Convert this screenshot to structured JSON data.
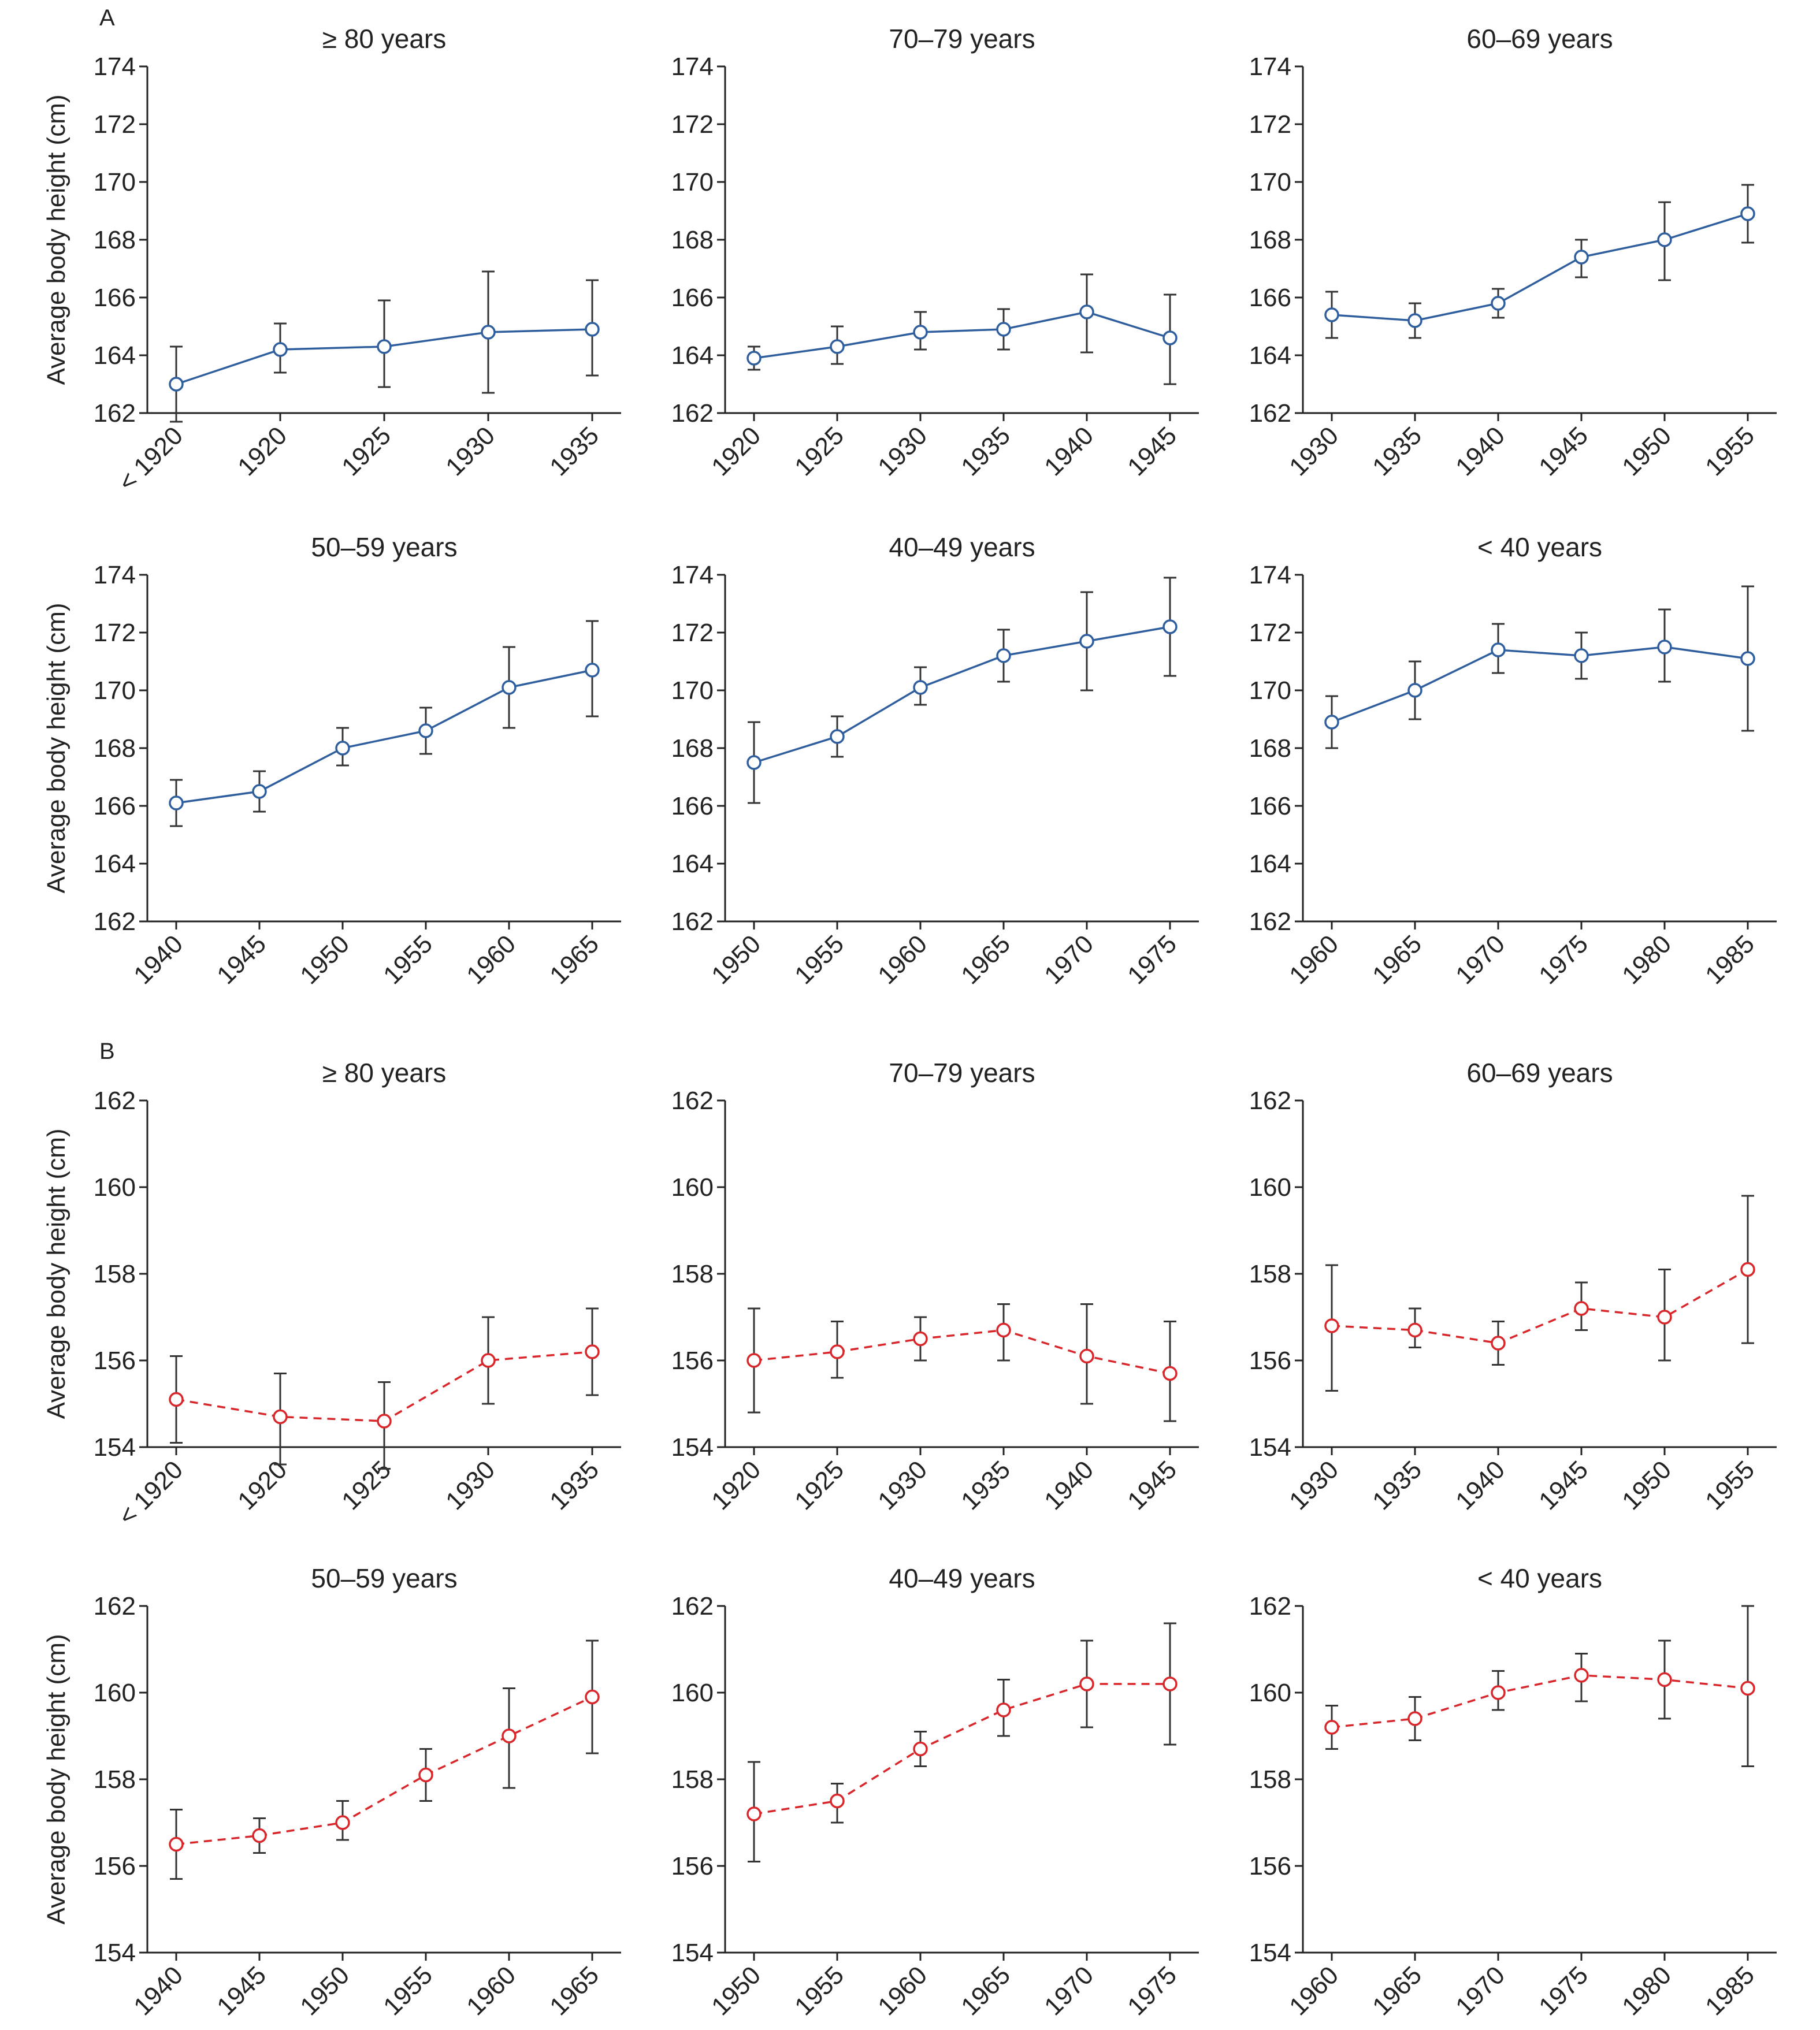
{
  "panels": [
    {
      "letter": "A"
    },
    {
      "letter": "B"
    }
  ],
  "styles": {
    "A": {
      "color": "#2e5e9e",
      "dash": "none"
    },
    "B": {
      "color": "#d9262b",
      "dash": "14 10"
    }
  },
  "ylabel": "Average body height (cm)",
  "chart_data": [
    {
      "type": "line",
      "panel": "A",
      "title": "≥ 80 years",
      "ylabel": "Average body height (cm)",
      "ylim": [
        162,
        174
      ],
      "yticks": [
        162,
        164,
        166,
        168,
        170,
        172,
        174
      ],
      "categories": [
        "< 1920",
        "1920",
        "1925",
        "1930",
        "1935"
      ],
      "values": [
        163.0,
        164.2,
        164.3,
        164.8,
        164.9
      ],
      "lower": [
        161.7,
        163.4,
        162.9,
        162.7,
        163.3
      ],
      "upper": [
        164.3,
        165.1,
        165.9,
        166.9,
        166.6
      ]
    },
    {
      "type": "line",
      "panel": "A",
      "title": "70–79 years",
      "ylabel": "",
      "ylim": [
        162,
        174
      ],
      "yticks": [
        162,
        164,
        166,
        168,
        170,
        172,
        174
      ],
      "categories": [
        "1920",
        "1925",
        "1930",
        "1935",
        "1940",
        "1945"
      ],
      "values": [
        163.9,
        164.3,
        164.8,
        164.9,
        165.5,
        164.6
      ],
      "lower": [
        163.5,
        163.7,
        164.2,
        164.2,
        164.1,
        163.0
      ],
      "upper": [
        164.3,
        165.0,
        165.5,
        165.6,
        166.8,
        166.1
      ]
    },
    {
      "type": "line",
      "panel": "A",
      "title": "60–69 years",
      "ylabel": "",
      "ylim": [
        162,
        174
      ],
      "yticks": [
        162,
        164,
        166,
        168,
        170,
        172,
        174
      ],
      "categories": [
        "1930",
        "1935",
        "1940",
        "1945",
        "1950",
        "1955"
      ],
      "values": [
        165.4,
        165.2,
        165.8,
        167.4,
        168.0,
        168.9
      ],
      "lower": [
        164.6,
        164.6,
        165.3,
        166.7,
        166.6,
        167.9
      ],
      "upper": [
        166.2,
        165.8,
        166.3,
        168.0,
        169.3,
        169.9
      ]
    },
    {
      "type": "line",
      "panel": "A",
      "title": "50–59 years",
      "ylabel": "Average body height (cm)",
      "ylim": [
        162,
        174
      ],
      "yticks": [
        162,
        164,
        166,
        168,
        170,
        172,
        174
      ],
      "categories": [
        "1940",
        "1945",
        "1950",
        "1955",
        "1960",
        "1965"
      ],
      "values": [
        166.1,
        166.5,
        168.0,
        168.6,
        170.1,
        170.7
      ],
      "lower": [
        165.3,
        165.8,
        167.4,
        167.8,
        168.7,
        169.1
      ],
      "upper": [
        166.9,
        167.2,
        168.7,
        169.4,
        171.5,
        172.4
      ]
    },
    {
      "type": "line",
      "panel": "A",
      "title": "40–49 years",
      "ylabel": "",
      "ylim": [
        162,
        174
      ],
      "yticks": [
        162,
        164,
        166,
        168,
        170,
        172,
        174
      ],
      "categories": [
        "1950",
        "1955",
        "1960",
        "1965",
        "1970",
        "1975"
      ],
      "values": [
        167.5,
        168.4,
        170.1,
        171.2,
        171.7,
        172.2
      ],
      "lower": [
        166.1,
        167.7,
        169.5,
        170.3,
        170.0,
        170.5
      ],
      "upper": [
        168.9,
        169.1,
        170.8,
        172.1,
        173.4,
        173.9
      ]
    },
    {
      "type": "line",
      "panel": "A",
      "title": "< 40 years",
      "ylabel": "",
      "ylim": [
        162,
        174
      ],
      "yticks": [
        162,
        164,
        166,
        168,
        170,
        172,
        174
      ],
      "categories": [
        "1960",
        "1965",
        "1970",
        "1975",
        "1980",
        "1985"
      ],
      "values": [
        168.9,
        170.0,
        171.4,
        171.2,
        171.5,
        171.1
      ],
      "lower": [
        168.0,
        169.0,
        170.6,
        170.4,
        170.3,
        168.6
      ],
      "upper": [
        169.8,
        171.0,
        172.3,
        172.0,
        172.8,
        173.6
      ]
    },
    {
      "type": "line",
      "panel": "B",
      "title": "≥ 80 years",
      "ylabel": "Average body height (cm)",
      "ylim": [
        154,
        162
      ],
      "yticks": [
        154,
        156,
        158,
        160,
        162
      ],
      "categories": [
        "< 1920",
        "1920",
        "1925",
        "1930",
        "1935"
      ],
      "values": [
        155.1,
        154.7,
        154.6,
        156.0,
        156.2
      ],
      "lower": [
        154.1,
        153.6,
        153.5,
        155.0,
        155.2
      ],
      "upper": [
        156.1,
        155.7,
        155.5,
        157.0,
        157.2
      ]
    },
    {
      "type": "line",
      "panel": "B",
      "title": "70–79 years",
      "ylabel": "",
      "ylim": [
        154,
        162
      ],
      "yticks": [
        154,
        156,
        158,
        160,
        162
      ],
      "categories": [
        "1920",
        "1925",
        "1930",
        "1935",
        "1940",
        "1945"
      ],
      "values": [
        156.0,
        156.2,
        156.5,
        156.7,
        156.1,
        155.7
      ],
      "lower": [
        154.8,
        155.6,
        156.0,
        156.0,
        155.0,
        154.6
      ],
      "upper": [
        157.2,
        156.9,
        157.0,
        157.3,
        157.3,
        156.9
      ]
    },
    {
      "type": "line",
      "panel": "B",
      "title": "60–69 years",
      "ylabel": "",
      "ylim": [
        154,
        162
      ],
      "yticks": [
        154,
        156,
        158,
        160,
        162
      ],
      "categories": [
        "1930",
        "1935",
        "1940",
        "1945",
        "1950",
        "1955"
      ],
      "values": [
        156.8,
        156.7,
        156.4,
        157.2,
        157.0,
        158.1
      ],
      "lower": [
        155.3,
        156.3,
        155.9,
        156.7,
        156.0,
        156.4
      ],
      "upper": [
        158.2,
        157.2,
        156.9,
        157.8,
        158.1,
        159.8
      ]
    },
    {
      "type": "line",
      "panel": "B",
      "title": "50–59 years",
      "ylabel": "Average body height (cm)",
      "ylim": [
        154,
        162
      ],
      "yticks": [
        154,
        156,
        158,
        160,
        162
      ],
      "categories": [
        "1940",
        "1945",
        "1950",
        "1955",
        "1960",
        "1965"
      ],
      "values": [
        156.5,
        156.7,
        157.0,
        158.1,
        159.0,
        159.9
      ],
      "lower": [
        155.7,
        156.3,
        156.6,
        157.5,
        157.8,
        158.6
      ],
      "upper": [
        157.3,
        157.1,
        157.5,
        158.7,
        160.1,
        161.2
      ]
    },
    {
      "type": "line",
      "panel": "B",
      "title": "40–49 years",
      "ylabel": "",
      "ylim": [
        154,
        162
      ],
      "yticks": [
        154,
        156,
        158,
        160,
        162
      ],
      "categories": [
        "1950",
        "1955",
        "1960",
        "1965",
        "1970",
        "1975"
      ],
      "values": [
        157.2,
        157.5,
        158.7,
        159.6,
        160.2,
        160.2
      ],
      "lower": [
        156.1,
        157.0,
        158.3,
        159.0,
        159.2,
        158.8
      ],
      "upper": [
        158.4,
        157.9,
        159.1,
        160.3,
        161.2,
        161.6
      ]
    },
    {
      "type": "line",
      "panel": "B",
      "title": "< 40 years",
      "ylabel": "",
      "ylim": [
        154,
        162
      ],
      "yticks": [
        154,
        156,
        158,
        160,
        162
      ],
      "categories": [
        "1960",
        "1965",
        "1970",
        "1975",
        "1980",
        "1985"
      ],
      "values": [
        159.2,
        159.4,
        160.0,
        160.4,
        160.3,
        160.1
      ],
      "lower": [
        158.7,
        158.9,
        159.6,
        159.8,
        159.4,
        158.3
      ],
      "upper": [
        159.7,
        159.9,
        160.5,
        160.9,
        161.2,
        162.0
      ]
    }
  ]
}
